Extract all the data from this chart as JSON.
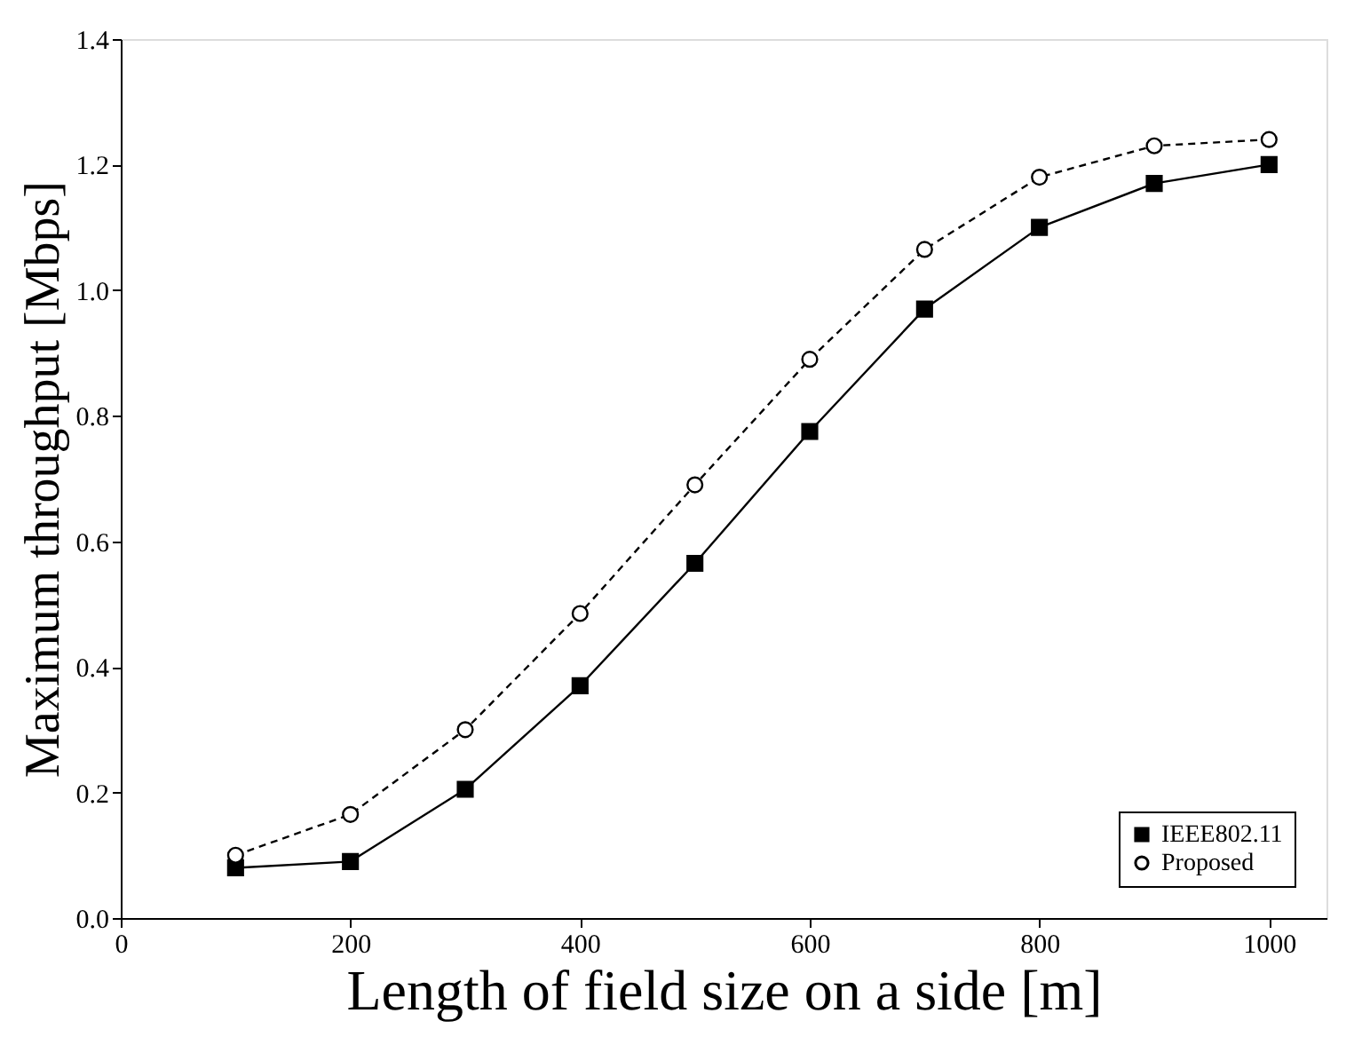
{
  "chart_data": {
    "type": "line",
    "xlabel": "Length of field size on a side [m]",
    "ylabel": "Maximum throughput [Mbps]",
    "x": [
      100,
      200,
      300,
      400,
      500,
      600,
      700,
      800,
      900,
      1000
    ],
    "series": [
      {
        "name": "IEEE802.11",
        "color": "#000000",
        "marker": "square",
        "line_style": "solid",
        "values": [
          0.08,
          0.09,
          0.205,
          0.37,
          0.565,
          0.775,
          0.97,
          1.1,
          1.17,
          1.2
        ]
      },
      {
        "name": "Proposed",
        "color": "#000000",
        "marker": "circle",
        "line_style": "dashed",
        "values": [
          0.1,
          0.165,
          0.3,
          0.485,
          0.69,
          0.89,
          1.065,
          1.18,
          1.23,
          1.24
        ]
      }
    ],
    "xlim": [
      0,
      1050
    ],
    "xticks": [
      0,
      200,
      400,
      600,
      800,
      1000
    ],
    "ylim": [
      0,
      1.4
    ],
    "yticks": [
      {
        "value": 0,
        "label": "0.0"
      },
      0.2,
      0.4,
      0.6,
      0.8,
      {
        "value": 1.0,
        "label": "1.0"
      },
      1.2,
      1.4
    ],
    "grid": false,
    "legend": "bottom right"
  }
}
